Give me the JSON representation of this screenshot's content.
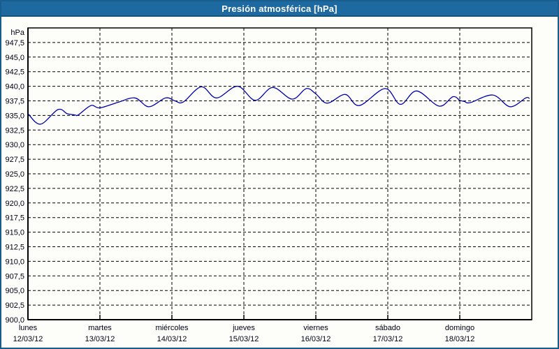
{
  "window": {
    "title": "Presión atmosférica [hPa]"
  },
  "colors": {
    "titlebar_bg": "#1d69a0",
    "frame_border": "#175e8d",
    "axis": "#000000",
    "grid": "#000000",
    "line": "#0000aa",
    "label_text": "#000016"
  },
  "chart_data": {
    "type": "line",
    "title": "Presión atmosférica [hPa]",
    "ylabel": "hPa",
    "ylim": [
      900,
      950
    ],
    "ytick_step": 2.5,
    "ytick_label_max": 947.5,
    "ytick_label_min": 900.0,
    "decimal_separator": ",",
    "grid": "dashed",
    "legend": "none",
    "hours_per_day": 24,
    "x_axis_days": [
      {
        "name": "lunes",
        "date": "12/03/12"
      },
      {
        "name": "martes",
        "date": "13/03/12"
      },
      {
        "name": "miércoles",
        "date": "14/03/12"
      },
      {
        "name": "jueves",
        "date": "15/03/12"
      },
      {
        "name": "viernes",
        "date": "16/03/12"
      },
      {
        "name": "sábado",
        "date": "17/03/12"
      },
      {
        "name": "domingo",
        "date": "18/03/12"
      }
    ],
    "points_hours_hpa": [
      [
        0.0,
        935.3
      ],
      [
        4.2,
        933.5
      ],
      [
        10.0,
        936.0
      ],
      [
        13.1,
        935.3
      ],
      [
        15.6,
        935.1
      ],
      [
        16.8,
        935.1
      ],
      [
        21.0,
        936.7
      ],
      [
        24.0,
        936.3
      ],
      [
        30.3,
        937.3
      ],
      [
        35.7,
        938.0
      ],
      [
        40.3,
        936.5
      ],
      [
        45.9,
        938.0
      ],
      [
        49.0,
        937.5
      ],
      [
        51.8,
        937.3
      ],
      [
        57.8,
        939.9
      ],
      [
        62.9,
        938.0
      ],
      [
        69.9,
        940.0
      ],
      [
        75.8,
        937.6
      ],
      [
        81.6,
        939.8
      ],
      [
        88.1,
        937.8
      ],
      [
        92.8,
        939.6
      ],
      [
        96.0,
        938.7
      ],
      [
        99.8,
        937.1
      ],
      [
        105.8,
        938.6
      ],
      [
        110.5,
        936.7
      ],
      [
        119.1,
        939.6
      ],
      [
        124.2,
        936.9
      ],
      [
        129.6,
        939.2
      ],
      [
        137.1,
        936.6
      ],
      [
        141.7,
        938.2
      ],
      [
        144.0,
        937.6
      ],
      [
        145.5,
        937.4
      ],
      [
        147.5,
        937.2
      ],
      [
        155.0,
        938.5
      ],
      [
        160.8,
        936.5
      ],
      [
        166.0,
        938.0
      ],
      [
        167.2,
        937.9
      ]
    ]
  }
}
